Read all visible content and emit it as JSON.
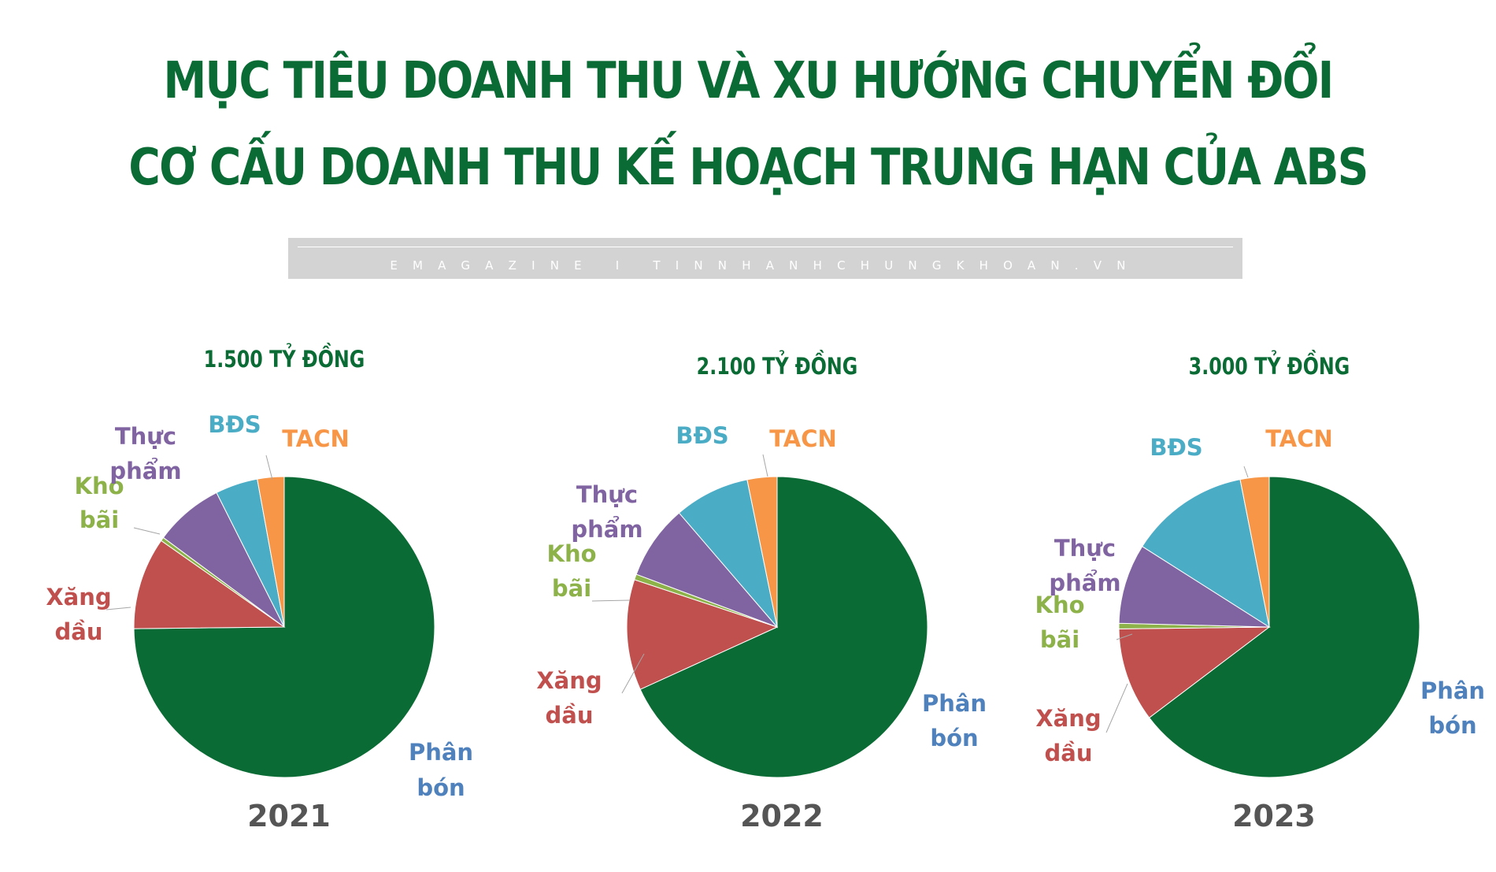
{
  "title": {
    "line1": "MỤC TIÊU DOANH THU VÀ XU HƯỚNG CHUYỂN ĐỔI",
    "line2": "CƠ CẤU DOANH THU KẾ HOẠCH TRUNG HẠN CỦA ABS"
  },
  "banner": {
    "text": "EMAGAZINE I TINNHANHCHUNGKHOAN.VN"
  },
  "colors": {
    "title": "#0b6b35",
    "year": "#555555",
    "Phân bón": "#0b6b35",
    "Xăng dầu": "#c0504d",
    "Kho bãi": "#8db24a",
    "Thực phẩm": "#8064a2",
    "BĐS": "#4bacc6",
    "TACN": "#f79646"
  },
  "label_colors": {
    "Phân bón": "#4f81bd",
    "Xăng dầu": "#c0504d",
    "Kho bãi": "#8db24a",
    "Thực phẩm": "#8064a2",
    "BĐS": "#4bacc6",
    "TACN": "#f79646"
  },
  "chart_data": [
    {
      "type": "pie",
      "title": "1.500 TỶ ĐỒNG",
      "year": "2021",
      "categories": [
        "Phân bón",
        "Xăng dầu",
        "Kho bãi",
        "Thực phẩm",
        "BĐS",
        "TACN"
      ],
      "values": [
        75.5,
        10.0,
        0.4,
        7.5,
        4.6,
        2.9
      ]
    },
    {
      "type": "pie",
      "title": "2.100 TỶ ĐỒNG",
      "year": "2022",
      "categories": [
        "Phân bón",
        "Xăng dầu",
        "Kho bãi",
        "Thực phẩm",
        "BĐS",
        "TACN"
      ],
      "values": [
        68.2,
        11.9,
        0.6,
        8.0,
        8.1,
        3.2
      ]
    },
    {
      "type": "pie",
      "title": "3.000 TỶ ĐỒNG",
      "year": "2023",
      "categories": [
        "Phân bón",
        "Xăng dầu",
        "Kho bãi",
        "Thực phẩm",
        "BĐS",
        "TACN"
      ],
      "values": [
        64.7,
        10.1,
        0.6,
        8.6,
        12.9,
        3.1
      ]
    }
  ]
}
